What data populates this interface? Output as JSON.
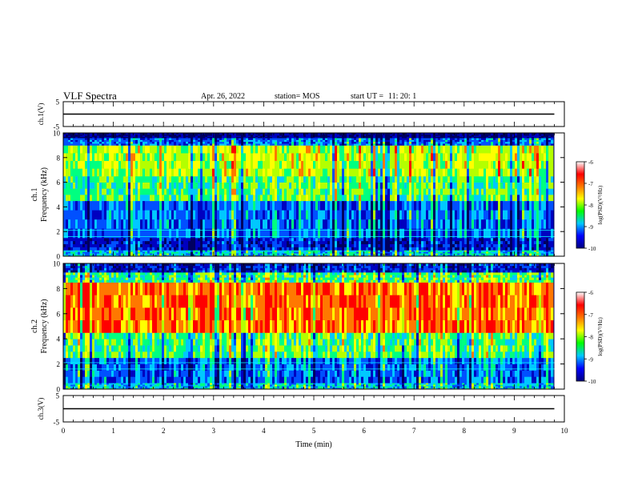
{
  "header": {
    "title": "VLF Spectra",
    "date": "Apr. 26, 2022",
    "station": "station= MOS",
    "start_label": "start UT =",
    "start_time": "11: 20: 1"
  },
  "colors": {
    "spectrum": [
      "#000060",
      "#0000c0",
      "#0050ff",
      "#00c8ff",
      "#00ff80",
      "#b4ff00",
      "#ffff00",
      "#ff7800",
      "#ff0000"
    ],
    "colorbar": [
      "#ffffff",
      "#ff0000",
      "#ff7800",
      "#ffff00",
      "#00ff00",
      "#00c8ff",
      "#0000ff",
      "#000080"
    ]
  },
  "chart_data": [
    {
      "type": "line",
      "panel": "ch1-waveform",
      "ylabel": "ch.1(V)",
      "ylim": [
        -5,
        5
      ],
      "yticks": [
        "5",
        "-5"
      ],
      "x": [
        0,
        1,
        2,
        3,
        4,
        5,
        6,
        7,
        8,
        9,
        9.8
      ],
      "values": [
        0,
        0,
        0,
        0,
        0,
        0,
        0,
        0,
        0,
        0,
        0
      ]
    },
    {
      "type": "heatmap",
      "panel": "ch1-spectrogram",
      "ylabel": "ch.1 Frequency (kHz)",
      "ylim": [
        0,
        10
      ],
      "yticks": [
        "0",
        "2",
        "4",
        "6",
        "8",
        "10"
      ],
      "colorbar": {
        "label": "log(PSD)(V²/Hz)",
        "range": [
          -10,
          -6
        ],
        "ticks": [
          "-6",
          "-7",
          "-8",
          "-9",
          "-10"
        ]
      },
      "band_levels": [
        {
          "f": [
            0,
            0.5
          ],
          "level": 3
        },
        {
          "f": [
            0.5,
            1.5
          ],
          "level": 1
        },
        {
          "f": [
            1.5,
            4.5
          ],
          "level": 2
        },
        {
          "f": [
            4.5,
            6.5
          ],
          "level": 4
        },
        {
          "f": [
            6.5,
            9.0
          ],
          "level": 5
        },
        {
          "f": [
            9.0,
            9.6
          ],
          "level": 2
        },
        {
          "f": [
            9.6,
            10
          ],
          "level": 0
        }
      ]
    },
    {
      "type": "heatmap",
      "panel": "ch2-spectrogram",
      "ylabel": "ch.2 Frequency (kHz)",
      "ylim": [
        0,
        10
      ],
      "yticks": [
        "0",
        "2",
        "4",
        "6",
        "8",
        "10"
      ],
      "colorbar": {
        "label": "log(PSD)(V²/Hz)",
        "range": [
          -10,
          -6
        ],
        "ticks": [
          "-6",
          "-7",
          "-8",
          "-9",
          "-10"
        ]
      },
      "band_levels": [
        {
          "f": [
            0,
            0.5
          ],
          "level": 3
        },
        {
          "f": [
            0.5,
            2.5
          ],
          "level": 2
        },
        {
          "f": [
            2.5,
            4.5
          ],
          "level": 4
        },
        {
          "f": [
            4.5,
            8.5
          ],
          "level": 7
        },
        {
          "f": [
            8.5,
            9.3
          ],
          "level": 4
        },
        {
          "f": [
            9.3,
            10
          ],
          "level": 1
        }
      ]
    },
    {
      "type": "line",
      "panel": "ch3-waveform",
      "ylabel": "ch.3(V)",
      "ylim": [
        -5,
        5
      ],
      "yticks": [
        "5",
        "-5"
      ],
      "x": [
        0,
        1,
        2,
        3,
        4,
        5,
        6,
        7,
        8,
        9,
        9.8
      ],
      "values": [
        0,
        0,
        0,
        0,
        0,
        0,
        0,
        0,
        0,
        0,
        0
      ]
    }
  ],
  "xaxis": {
    "label": "Time (min)",
    "xlim": [
      0,
      10
    ],
    "ticks": [
      "0",
      "1",
      "2",
      "3",
      "4",
      "5",
      "6",
      "7",
      "8",
      "9",
      "10"
    ],
    "data_end": 9.8
  }
}
